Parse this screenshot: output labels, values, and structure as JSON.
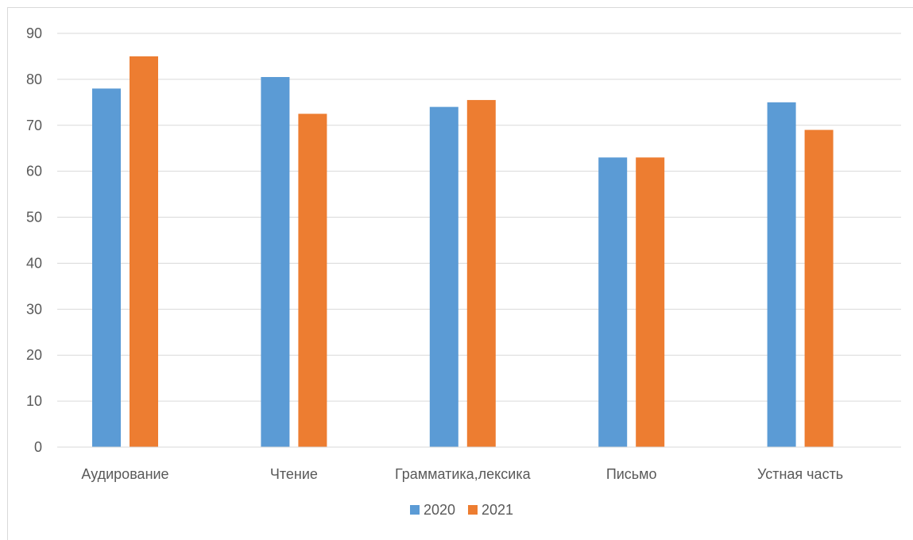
{
  "chart_data": {
    "type": "bar",
    "title": "",
    "xlabel": "",
    "ylabel": "",
    "categories": [
      "Аудирование",
      "Чтение",
      "Грамматика,лексика",
      "Письмо",
      "Устная часть"
    ],
    "series": [
      {
        "name": "2020",
        "color": "#5b9bd5",
        "values": [
          78,
          80.5,
          74,
          63,
          75
        ]
      },
      {
        "name": "2021",
        "color": "#ed7d31",
        "values": [
          85,
          72.5,
          75.5,
          63,
          69
        ]
      }
    ],
    "ylim": [
      0,
      90
    ],
    "yticks": [
      0,
      10,
      20,
      30,
      40,
      50,
      60,
      70,
      80,
      90
    ],
    "grid": true,
    "gridline_color": "#d9d9d9",
    "legend_position": "bottom"
  }
}
